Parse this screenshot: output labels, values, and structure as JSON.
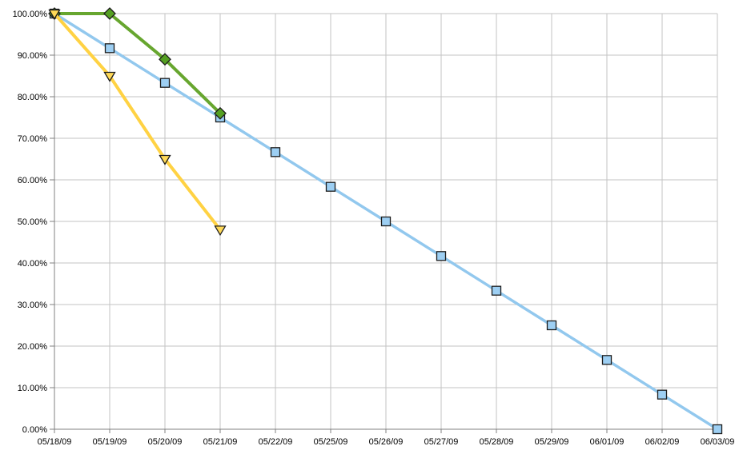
{
  "chart": {
    "background": "#FFFFFF",
    "grid_color": "#C3C3C3",
    "axis_color": "#808080",
    "label_color": "#000000"
  },
  "chart_data": {
    "type": "line",
    "title": "",
    "xlabel": "",
    "ylabel": "",
    "legend": "none",
    "grid": true,
    "ylim": [
      0,
      100
    ],
    "ytick_step": 10,
    "ytick_labels": [
      "0.00%",
      "10.00%",
      "20.00%",
      "30.00%",
      "40.00%",
      "50.00%",
      "60.00%",
      "70.00%",
      "80.00%",
      "90.00%",
      "100.00%"
    ],
    "categories": [
      "05/18/09",
      "05/19/09",
      "05/20/09",
      "05/21/09",
      "05/22/09",
      "05/25/09",
      "05/26/09",
      "05/27/09",
      "05/28/09",
      "05/29/09",
      "06/01/09",
      "06/02/09",
      "06/03/09"
    ],
    "series": [
      {
        "name": "blue-squares-baseline",
        "marker": "square",
        "line_color": "#92C8EE",
        "marker_fill": "#9DCFF3",
        "marker_stroke": "#1C1C1C",
        "line_width": 3.5,
        "values": [
          100,
          91.67,
          83.33,
          75,
          66.67,
          58.33,
          50,
          41.67,
          33.33,
          25,
          16.67,
          8.33,
          0
        ]
      },
      {
        "name": "green-diamonds",
        "marker": "diamond",
        "line_color": "#67A62F",
        "marker_fill": "#55A022",
        "marker_stroke": "#1C1C1C",
        "line_width": 4,
        "values": [
          100,
          100,
          89,
          76,
          null,
          null,
          null,
          null,
          null,
          null,
          null,
          null,
          null
        ]
      },
      {
        "name": "yellow-triangles",
        "marker": "triangle-down",
        "line_color": "#FFD243",
        "marker_fill": "#FFD957",
        "marker_stroke": "#1C1C1C",
        "line_width": 4,
        "values": [
          100,
          85,
          65,
          48,
          null,
          null,
          null,
          null,
          null,
          null,
          null,
          null,
          null
        ]
      }
    ]
  }
}
